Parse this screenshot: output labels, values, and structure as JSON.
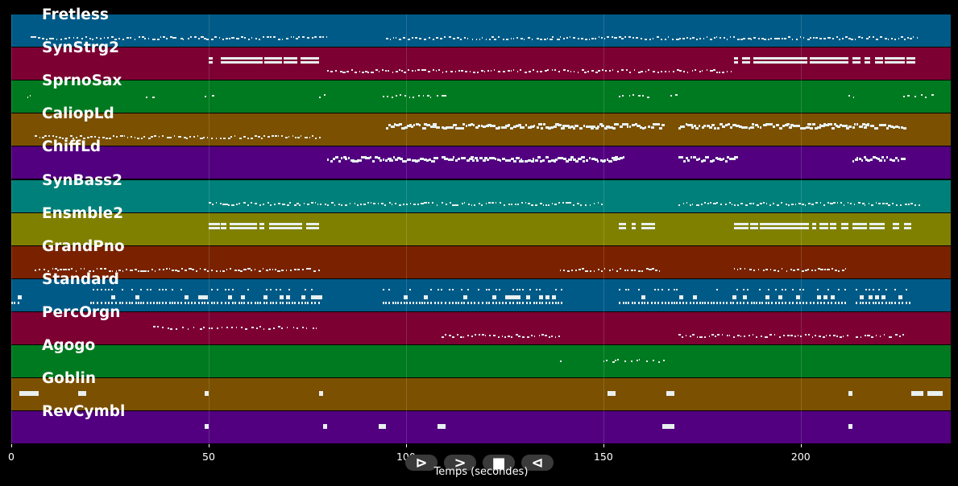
{
  "tracks": [
    {
      "name": "Fretless",
      "color": "#005a87",
      "segments": [
        [
          5,
          80,
          "light"
        ],
        [
          95,
          230,
          "light"
        ]
      ]
    },
    {
      "name": "SynStrg2",
      "color": "#7d0033",
      "segments": [
        [
          50,
          78,
          "block"
        ],
        [
          80,
          183,
          "light"
        ],
        [
          183,
          212,
          "block"
        ],
        [
          213,
          229,
          "block"
        ]
      ]
    },
    {
      "name": "SprnoSax",
      "color": "#007a20",
      "segments": [
        [
          4,
          6,
          "sparse"
        ],
        [
          34,
          36,
          "sparse"
        ],
        [
          49,
          51,
          "sparse"
        ],
        [
          78,
          80,
          "sparse"
        ],
        [
          94,
          110,
          "sparse"
        ],
        [
          154,
          162,
          "sparse"
        ],
        [
          167,
          169,
          "sparse"
        ],
        [
          212,
          214,
          "sparse"
        ],
        [
          226,
          234,
          "sparse"
        ]
      ]
    },
    {
      "name": "CaliopLd",
      "color": "#7b5000",
      "segments": [
        [
          6,
          78,
          "light"
        ],
        [
          95,
          108,
          "dense"
        ],
        [
          109,
          165,
          "dense"
        ],
        [
          169,
          212,
          "dense"
        ],
        [
          213,
          226,
          "dense"
        ]
      ]
    },
    {
      "name": "ChiffLd",
      "color": "#520080",
      "segments": [
        [
          80,
          108,
          "dense"
        ],
        [
          109,
          155,
          "dense"
        ],
        [
          169,
          184,
          "dense"
        ],
        [
          213,
          226,
          "dense"
        ]
      ]
    },
    {
      "name": "SynBass2",
      "color": "#00807a",
      "segments": [
        [
          50,
          80,
          "light"
        ],
        [
          80,
          108,
          "light"
        ],
        [
          109,
          150,
          "light"
        ],
        [
          169,
          230,
          "light"
        ]
      ]
    },
    {
      "name": "Ensmble2",
      "color": "#808000",
      "segments": [
        [
          50,
          78,
          "block"
        ],
        [
          154,
          163,
          "block"
        ],
        [
          183,
          212,
          "block"
        ],
        [
          213,
          228,
          "block"
        ]
      ]
    },
    {
      "name": "GrandPno",
      "color": "#7a2200",
      "segments": [
        [
          6,
          78,
          "light"
        ],
        [
          139,
          165,
          "light"
        ],
        [
          183,
          212,
          "light"
        ]
      ]
    },
    {
      "name": "Standard",
      "color": "#005a87",
      "segments": [
        [
          0,
          2,
          "drum"
        ],
        [
          20,
          78,
          "drum"
        ],
        [
          94,
          140,
          "drum"
        ],
        [
          154,
          212,
          "drum"
        ],
        [
          214,
          228,
          "drum"
        ]
      ]
    },
    {
      "name": "PercOrgn",
      "color": "#7d0033",
      "segments": [
        [
          36,
          78,
          "sparse"
        ],
        [
          109,
          139,
          "light"
        ],
        [
          169,
          212,
          "light"
        ],
        [
          214,
          226,
          "light"
        ]
      ]
    },
    {
      "name": "Agogo",
      "color": "#007a20",
      "segments": [
        [
          139,
          140,
          "sparse"
        ],
        [
          150,
          166,
          "sparse"
        ]
      ]
    },
    {
      "name": "Goblin",
      "color": "#7b5000",
      "segments": [
        [
          2,
          7,
          "blob"
        ],
        [
          17,
          19,
          "blob"
        ],
        [
          49,
          50,
          "blob"
        ],
        [
          78,
          79,
          "blob"
        ],
        [
          151,
          153,
          "blob"
        ],
        [
          166,
          168,
          "blob"
        ],
        [
          212,
          213,
          "blob"
        ],
        [
          228,
          231,
          "blob"
        ],
        [
          232,
          236,
          "blob"
        ]
      ]
    },
    {
      "name": "RevCymbl",
      "color": "#520080",
      "segments": [
        [
          49,
          50,
          "blob"
        ],
        [
          79,
          80,
          "blob"
        ],
        [
          93,
          95,
          "blob"
        ],
        [
          108,
          110,
          "blob"
        ],
        [
          165,
          168,
          "blob"
        ],
        [
          212,
          213,
          "blob"
        ]
      ]
    }
  ],
  "xaxis": {
    "ticks": [
      0,
      50,
      100,
      150,
      200
    ],
    "tick_labels": [
      "0",
      "50",
      "100",
      "150",
      "200"
    ],
    "min": 0,
    "max": 238,
    "label": "Temps (secondes)"
  },
  "controls": [
    {
      "name": "play-button",
      "glyph": "⊳"
    },
    {
      "name": "forward-button",
      "glyph": ">"
    },
    {
      "name": "stop-button",
      "glyph": "■"
    },
    {
      "name": "rewind-button",
      "glyph": "⊲"
    }
  ]
}
